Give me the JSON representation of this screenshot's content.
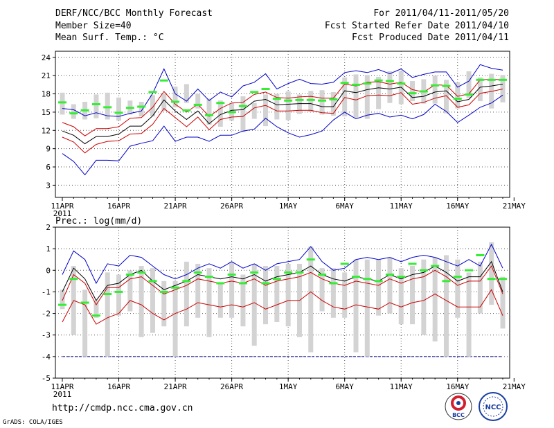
{
  "header": {
    "title": "DERF/NCC/BCC Monthly Forecast",
    "member_size": "Member Size=40",
    "variable": "Mean Surf. Temp.: °C",
    "period": "For 2011/04/11-2011/05/20",
    "start_date": "Fcst Started Refer Date 2011/04/10",
    "produced_date": "Fcst Produced Date 2011/04/11"
  },
  "footer": {
    "url": "http://cmdp.ncc.cma.gov.cn",
    "credit": "GrADS: COLA/IGES",
    "logo_bcc": "BCC",
    "logo_ncc": "NCC"
  },
  "colors": {
    "spread_bar": "#d3d3d3",
    "median_dash": "#33ee33",
    "mean_line": "#000000",
    "quartile_lines": "#cc0000",
    "extreme_lines": "#0000cc",
    "grid": "#555555"
  },
  "chart_data": [
    {
      "type": "line",
      "title": "Mean Surf. Temp.: °C",
      "xlabel": "",
      "ylabel": "°C",
      "x_tick_labels": [
        "11APR",
        "16APR",
        "21APR",
        "26APR",
        "1MAY",
        "6MAY",
        "11MAY",
        "16MAY",
        "21MAY"
      ],
      "x_sublabel": "2011",
      "ylim": [
        1,
        25
      ],
      "y_ticks": [
        3,
        6,
        9,
        12,
        15,
        18,
        21,
        24
      ],
      "y_tick_labels": [
        "3",
        "6",
        "9",
        "12",
        "15",
        "18",
        "21",
        "24"
      ],
      "x": [
        0,
        1,
        2,
        3,
        4,
        5,
        6,
        7,
        8,
        9,
        10,
        11,
        12,
        13,
        14,
        15,
        16,
        17,
        18,
        19,
        20,
        21,
        22,
        23,
        24,
        25,
        26,
        27,
        28,
        29,
        30,
        31,
        32,
        33,
        34,
        35,
        36,
        37,
        38,
        39
      ],
      "bar_low": [
        14.6,
        13.9,
        13.8,
        14.0,
        13.8,
        13.6,
        14.6,
        14.3,
        14.3,
        15.2,
        15.8,
        16.5,
        15.6,
        12.9,
        12.6,
        13.6,
        11.7,
        13.9,
        12.7,
        13.8,
        13.7,
        14.7,
        15.0,
        14.6,
        14.4,
        14.3,
        14.1,
        13.9,
        15.5,
        16.5,
        16.3,
        16.8,
        16.4,
        16.4,
        14.8,
        15.6,
        17.3,
        16.8,
        15.6,
        16.6
      ],
      "bar_high": [
        18.2,
        16.3,
        16.7,
        17.9,
        18.2,
        17.4,
        16.9,
        16.7,
        17.8,
        18.1,
        19.2,
        19.6,
        18.0,
        17.2,
        16.9,
        16.5,
        17.6,
        16.5,
        17.9,
        18.0,
        18.4,
        17.9,
        18.5,
        18.6,
        18.3,
        20.7,
        21.2,
        21.1,
        20.8,
        21.7,
        21.7,
        20.1,
        20.4,
        21.0,
        20.3,
        19.9,
        21.7,
        20.7,
        21.3,
        21.1
      ],
      "series": [
        {
          "name": "Median",
          "values": [
            16.6,
            14.8,
            15.3,
            16.3,
            15.8,
            14.9,
            15.7,
            15.9,
            18.3,
            20.2,
            16.7,
            15.3,
            16.2,
            14.5,
            16.5,
            15.0,
            16.0,
            18.3,
            18.8,
            17.2,
            16.9,
            17.0,
            17.0,
            16.9,
            17.1,
            19.8,
            19.5,
            19.7,
            20.2,
            20.1,
            19.7,
            18.1,
            18.4,
            19.4,
            19.3,
            17.2,
            17.9,
            20.3,
            20.3,
            20.3
          ]
        },
        {
          "name": "Ensemble mean",
          "values": [
            11.9,
            11.2,
            9.8,
            11.0,
            11.0,
            11.4,
            12.7,
            12.7,
            14.4,
            17.0,
            15.2,
            13.8,
            15.2,
            13.1,
            14.6,
            15.3,
            15.4,
            16.8,
            17.1,
            16.2,
            16.3,
            16.4,
            16.4,
            15.9,
            15.9,
            18.5,
            18.2,
            18.7,
            19.0,
            18.8,
            19.1,
            17.4,
            17.6,
            18.3,
            18.5,
            16.7,
            17.1,
            19.1,
            19.3,
            19.6
          ]
        },
        {
          "name": "Upper quartile",
          "values": [
            13.3,
            12.6,
            11.1,
            12.3,
            12.3,
            12.6,
            14.0,
            14.1,
            15.8,
            18.4,
            16.3,
            15.0,
            16.3,
            14.3,
            15.6,
            16.5,
            16.6,
            17.9,
            18.3,
            17.4,
            17.3,
            17.5,
            17.6,
            17.3,
            17.3,
            19.6,
            19.3,
            19.9,
            20.0,
            19.6,
            19.9,
            18.7,
            18.3,
            19.5,
            19.4,
            17.6,
            18.0,
            20.3,
            20.4,
            20.3
          ]
        },
        {
          "name": "Lower quartile",
          "values": [
            10.9,
            10.1,
            8.3,
            9.7,
            10.2,
            10.3,
            11.4,
            11.5,
            13.0,
            15.6,
            14.1,
            12.6,
            14.2,
            12.1,
            13.8,
            14.2,
            14.3,
            15.7,
            16.1,
            15.2,
            15.2,
            15.3,
            15.3,
            14.9,
            14.8,
            17.4,
            17.0,
            17.7,
            17.8,
            17.7,
            18.2,
            16.3,
            16.6,
            17.3,
            17.7,
            15.8,
            16.2,
            18.1,
            18.4,
            18.8
          ]
        },
        {
          "name": "Maximum",
          "values": [
            15.6,
            15.4,
            14.4,
            14.9,
            14.4,
            14.3,
            14.8,
            15.2,
            18.1,
            22.1,
            18.0,
            16.8,
            18.8,
            16.9,
            18.3,
            17.5,
            19.3,
            19.9,
            21.3,
            18.8,
            19.7,
            20.4,
            19.7,
            19.6,
            19.9,
            21.5,
            21.8,
            21.5,
            22.0,
            21.3,
            22.1,
            20.7,
            21.2,
            21.6,
            21.6,
            19.1,
            20.1,
            22.8,
            22.2,
            21.9
          ]
        },
        {
          "name": "Minimum",
          "values": [
            8.2,
            6.9,
            4.7,
            7.1,
            7.1,
            7.0,
            9.4,
            9.9,
            10.3,
            12.7,
            10.2,
            10.9,
            10.9,
            10.2,
            11.2,
            11.2,
            11.9,
            12.2,
            14.0,
            12.6,
            11.6,
            10.9,
            11.3,
            11.9,
            13.7,
            15.0,
            13.9,
            14.5,
            14.8,
            14.2,
            14.5,
            13.9,
            14.6,
            16.3,
            15.1,
            13.3,
            14.5,
            15.8,
            16.5,
            17.8
          ]
        }
      ]
    },
    {
      "type": "line",
      "title": "Prec.: log(mm/d)",
      "xlabel": "",
      "ylabel": "log(mm/d)",
      "x_tick_labels": [
        "11APR",
        "16APR",
        "21APR",
        "26APR",
        "1MAY",
        "6MAY",
        "11MAY",
        "16MAY",
        "21MAY"
      ],
      "x_sublabel": "2011",
      "ylim": [
        -5,
        2
      ],
      "y_ticks": [
        -5,
        -4,
        -3,
        -2,
        -1,
        0,
        1,
        2
      ],
      "y_tick_labels": [
        "-5",
        "-4",
        "-3",
        "-2",
        "-1",
        "0",
        "1",
        "2"
      ],
      "x": [
        0,
        1,
        2,
        3,
        4,
        5,
        6,
        7,
        8,
        9,
        10,
        11,
        12,
        13,
        14,
        15,
        16,
        17,
        18,
        19,
        20,
        21,
        22,
        23,
        24,
        25,
        26,
        27,
        28,
        29,
        30,
        31,
        32,
        33,
        34,
        35,
        36,
        37,
        38,
        39
      ],
      "bar_low": [
        -1.8,
        -3.0,
        -4.0,
        -2.2,
        -4.0,
        -2.1,
        -1.9,
        -3.1,
        -2.9,
        -2.6,
        -4.0,
        -2.6,
        -2.2,
        -3.1,
        -2.2,
        -2.2,
        -2.6,
        -3.5,
        -2.5,
        -2.4,
        -2.6,
        -3.1,
        -3.8,
        -1.9,
        -2.2,
        -2.2,
        -3.8,
        -4.0,
        -2.1,
        -2.0,
        -2.5,
        -2.5,
        -3.0,
        -3.3,
        -4.0,
        -2.2,
        -4.0,
        -2.0,
        -1.6,
        -2.7
      ],
      "bar_high": [
        -0.9,
        0.2,
        -0.9,
        -1.4,
        -0.1,
        -0.2,
        0.0,
        0.2,
        0.1,
        -0.5,
        -0.5,
        0.4,
        0.3,
        0.1,
        -0.6,
        0.4,
        -0.2,
        0.3,
        0.2,
        0.2,
        0.3,
        0.3,
        1.1,
        0.1,
        0.1,
        -0.1,
        0.5,
        0.5,
        0.5,
        0.6,
        0.1,
        0.2,
        0.5,
        0.6,
        0.7,
        0.5,
        -0.1,
        0.4,
        1.3,
        -0.3
      ],
      "floor": -4,
      "series": [
        {
          "name": "Median",
          "values": [
            -1.6,
            -0.4,
            -1.5,
            -2.1,
            -1.1,
            -1.0,
            -0.2,
            -0.1,
            -0.5,
            -1.0,
            -0.8,
            -0.5,
            -0.1,
            -0.3,
            -0.6,
            -0.2,
            -0.6,
            -0.1,
            -0.6,
            -0.4,
            -0.1,
            -0.1,
            0.5,
            -0.2,
            -0.6,
            0.3,
            -0.3,
            -0.4,
            -0.5,
            -0.2,
            -0.3,
            0.3,
            0.0,
            0.2,
            -0.5,
            -0.3,
            0.0,
            0.7,
            -0.4,
            -0.4
          ]
        },
        {
          "name": "Ensemble mean",
          "values": [
            -1.0,
            0.1,
            -0.4,
            -1.4,
            -0.7,
            -0.6,
            -0.2,
            0.0,
            -0.5,
            -0.9,
            -0.7,
            -0.5,
            -0.2,
            -0.3,
            -0.4,
            -0.3,
            -0.4,
            -0.2,
            -0.5,
            -0.3,
            -0.2,
            -0.1,
            0.2,
            -0.2,
            -0.4,
            -0.5,
            -0.3,
            -0.4,
            -0.5,
            -0.2,
            -0.4,
            -0.2,
            -0.1,
            0.2,
            -0.1,
            -0.5,
            -0.3,
            -0.3,
            0.4,
            -1.0
          ]
        },
        {
          "name": "Upper quartile",
          "values": [
            -1.4,
            -0.2,
            -0.6,
            -1.6,
            -0.8,
            -0.8,
            -0.4,
            -0.3,
            -0.7,
            -1.1,
            -0.9,
            -0.7,
            -0.4,
            -0.5,
            -0.6,
            -0.5,
            -0.6,
            -0.4,
            -0.7,
            -0.5,
            -0.4,
            -0.3,
            -0.1,
            -0.4,
            -0.6,
            -0.7,
            -0.5,
            -0.6,
            -0.7,
            -0.4,
            -0.6,
            -0.4,
            -0.3,
            0.0,
            -0.3,
            -0.7,
            -0.5,
            -0.5,
            0.2,
            -1.1
          ]
        },
        {
          "name": "Lower quartile",
          "values": [
            -2.4,
            -1.4,
            -1.6,
            -2.5,
            -2.2,
            -2.0,
            -1.4,
            -1.6,
            -2.0,
            -2.3,
            -2.0,
            -1.8,
            -1.5,
            -1.6,
            -1.7,
            -1.6,
            -1.7,
            -1.5,
            -1.8,
            -1.6,
            -1.4,
            -1.4,
            -1.0,
            -1.4,
            -1.7,
            -1.8,
            -1.6,
            -1.7,
            -1.8,
            -1.5,
            -1.7,
            -1.5,
            -1.4,
            -1.1,
            -1.4,
            -1.7,
            -1.7,
            -1.7,
            -0.9,
            -2.1
          ]
        },
        {
          "name": "Maximum",
          "values": [
            -0.2,
            0.9,
            0.5,
            -0.6,
            0.3,
            0.2,
            0.7,
            0.6,
            0.2,
            -0.2,
            -0.4,
            -0.2,
            0.1,
            0.3,
            0.1,
            0.4,
            0.1,
            0.3,
            0.0,
            0.3,
            0.4,
            0.5,
            1.1,
            0.4,
            0.0,
            0.1,
            0.5,
            0.6,
            0.5,
            0.6,
            0.4,
            0.6,
            0.7,
            0.6,
            0.4,
            0.2,
            0.5,
            0.2,
            1.2,
            0.1
          ]
        }
      ]
    }
  ]
}
